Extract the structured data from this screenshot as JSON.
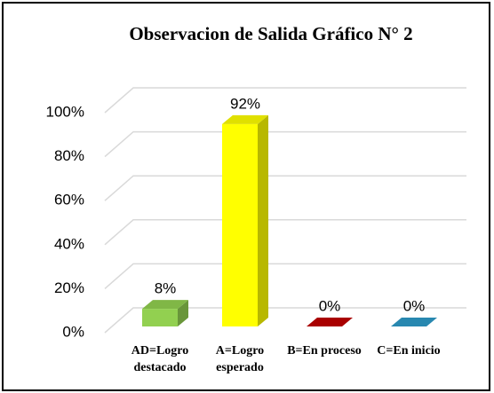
{
  "chart_data": {
    "type": "bar3d",
    "title": "Observacion de Salida Gráfico N° 2",
    "categories": [
      "AD=Logro destacado",
      "A=Logro esperado",
      "B=En proceso",
      "C=En inicio"
    ],
    "values": [
      8,
      92,
      0,
      0
    ],
    "value_labels": [
      "8%",
      "92%",
      "0%",
      "0%"
    ],
    "colors": [
      "#92d050",
      "#ffff00",
      "#c00000",
      "#2e9ac8"
    ],
    "ylim": [
      0,
      100
    ],
    "yticks": [
      {
        "value": 0,
        "label": "0%"
      },
      {
        "value": 20,
        "label": "20%"
      },
      {
        "value": 40,
        "label": "40%"
      },
      {
        "value": 60,
        "label": "60%"
      },
      {
        "value": 80,
        "label": "80%"
      },
      {
        "value": 100,
        "label": "100%"
      }
    ],
    "grid": true
  }
}
